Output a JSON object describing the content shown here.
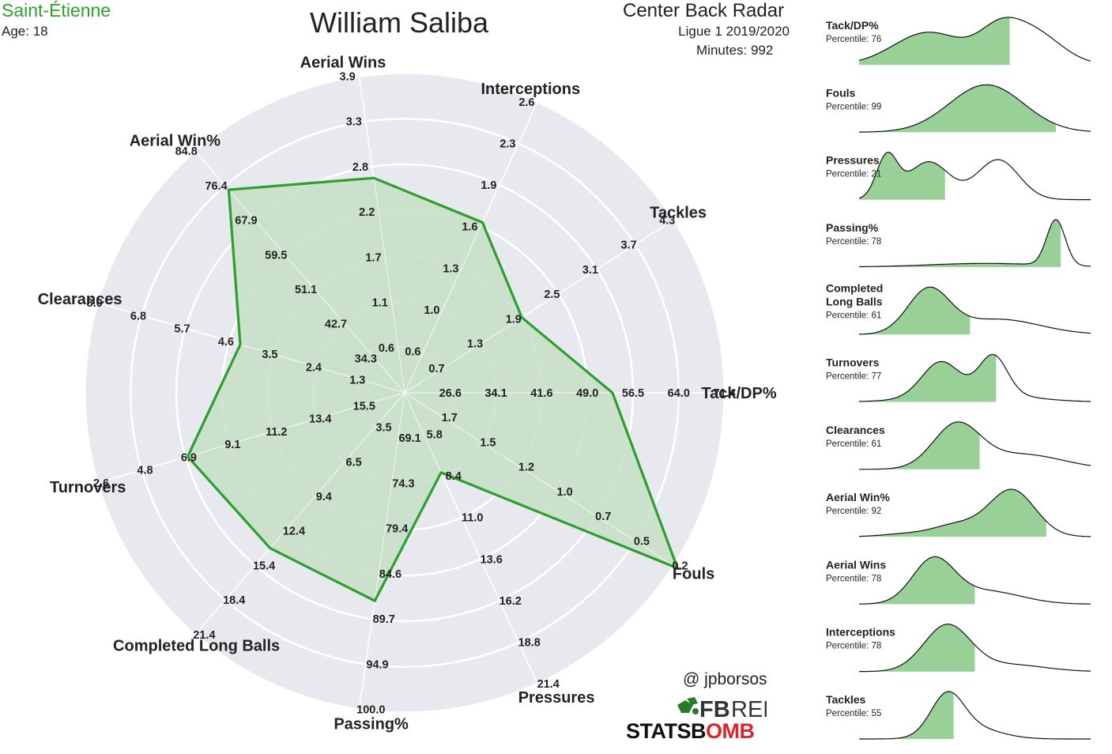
{
  "header": {
    "club": "Saint-Étienne",
    "age": "Age: 18",
    "player": "William Saliba",
    "radar_title": "Center Back Radar",
    "league": "Ligue 1 2019/2020",
    "minutes": "Minutes: 992"
  },
  "credits": {
    "handle": "@ jpborsos",
    "fbref_bold": "FB",
    "fbref_light": "REF",
    "statsbomb_black": "STATSB",
    "statsbomb_red": "OMB"
  },
  "colors": {
    "accent": "#2ca02c",
    "radar_bg": "#e8e8ef",
    "fill": "#c6dfc6",
    "dist_fill": "#98d098",
    "text": "#222222"
  },
  "chart_data": [
    {
      "type": "radar",
      "grid": true,
      "axes": [
        {
          "label": "Tack/DP%",
          "ticks": [
            "26.6",
            "34.1",
            "41.6",
            "49.0",
            "56.5",
            "64.0",
            "71.4"
          ],
          "value_ring": 4.55
        },
        {
          "label": "Tackles",
          "ticks": [
            "0.7",
            "1.3",
            "1.9",
            "2.5",
            "3.1",
            "3.7",
            "4.3"
          ],
          "value_ring": 3.05
        },
        {
          "label": "Interceptions",
          "ticks": [
            "0.6",
            "1.0",
            "1.3",
            "1.6",
            "1.9",
            "2.3",
            "2.6"
          ],
          "value_ring": 4.1
        },
        {
          "label": "Aerial Wins",
          "ticks": [
            "0.6",
            "1.1",
            "1.7",
            "2.2",
            "2.8",
            "3.3",
            "3.9"
          ],
          "value_ring": 4.75
        },
        {
          "label": "Aerial Win%",
          "ticks": [
            "34.3",
            "42.7",
            "51.1",
            "59.5",
            "67.9",
            "76.4",
            "84.8"
          ],
          "value_ring": 5.88
        },
        {
          "label": "Clearances",
          "ticks": [
            "1.3",
            "2.4",
            "3.5",
            "4.6",
            "5.7",
            "6.8",
            "8.0"
          ],
          "value_ring": 3.75
        },
        {
          "label": "Turnovers",
          "ticks": [
            "15.5",
            "13.4",
            "11.2",
            "9.1",
            "6.9",
            "4.8",
            "2.6"
          ],
          "value_ring": 4.95
        },
        {
          "label": "Completed Long Balls",
          "ticks": [
            "3.5",
            "6.5",
            "9.4",
            "12.4",
            "15.4",
            "18.4",
            "21.4"
          ],
          "value_ring": 4.5
        },
        {
          "label": "Passing%",
          "ticks": [
            "69.1",
            "74.3",
            "79.4",
            "84.6",
            "89.7",
            "94.9",
            "100.0"
          ],
          "value_ring": 4.6
        },
        {
          "label": "Pressures",
          "ticks": [
            "5.8",
            "8.4",
            "11.0",
            "13.6",
            "16.2",
            "18.8",
            "21.4"
          ],
          "value_ring": 1.92
        },
        {
          "label": "Fouls",
          "ticks": [
            "1.7",
            "1.5",
            "1.2",
            "1.0",
            "0.7",
            "0.5",
            "0.2"
          ],
          "value_ring": 7.1
        }
      ]
    },
    {
      "type": "area",
      "title": "percentile distributions",
      "panels": [
        {
          "name": "Tack/DP%",
          "percentile_label": "Percentile: 76",
          "percentile": 76
        },
        {
          "name": "Fouls",
          "percentile_label": "Percentile: 99",
          "percentile": 99
        },
        {
          "name": "Pressures",
          "percentile_label": "Percentile: 21",
          "percentile": 21
        },
        {
          "name": "Passing%",
          "percentile_label": "Percentile: 78",
          "percentile": 78
        },
        {
          "name": "Completed\nLong Balls",
          "percentile_label": "Percentile: 61",
          "percentile": 61
        },
        {
          "name": "Turnovers",
          "percentile_label": "Percentile: 77",
          "percentile": 77
        },
        {
          "name": "Clearances",
          "percentile_label": "Percentile: 61",
          "percentile": 61
        },
        {
          "name": "Aerial Win%",
          "percentile_label": "Percentile: 92",
          "percentile": 92
        },
        {
          "name": "Aerial Wins",
          "percentile_label": "Percentile: 78",
          "percentile": 78
        },
        {
          "name": "Interceptions",
          "percentile_label": "Percentile: 78",
          "percentile": 78
        },
        {
          "name": "Tackles",
          "percentile_label": "Percentile: 55",
          "percentile": 55
        }
      ]
    }
  ]
}
